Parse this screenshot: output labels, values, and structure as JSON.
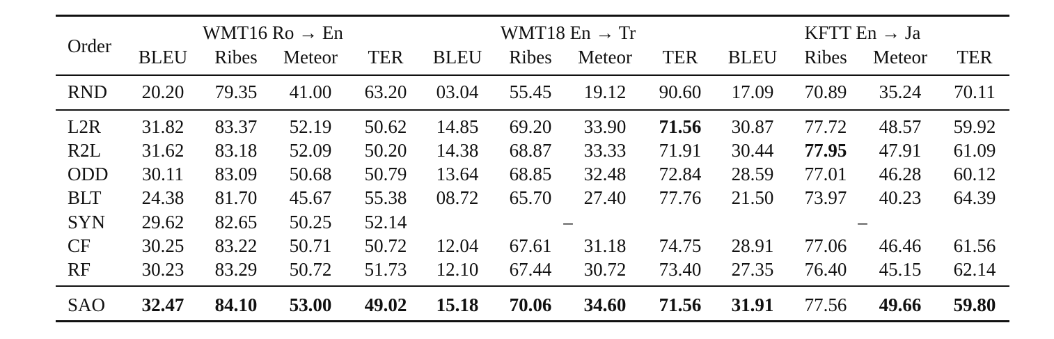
{
  "table": {
    "order_header": "Order",
    "groups": [
      "WMT16 Ro → En",
      "WMT18 En → Tr",
      "KFTT En → Ja"
    ],
    "metrics": [
      "BLEU",
      "Ribes",
      "Meteor",
      "TER"
    ],
    "rows": [
      {
        "label": "RND",
        "cells": [
          {
            "v": "20.20"
          },
          {
            "v": "79.35"
          },
          {
            "v": "41.00"
          },
          {
            "v": "63.20"
          },
          {
            "v": "03.04"
          },
          {
            "v": "55.45"
          },
          {
            "v": "19.12"
          },
          {
            "v": "90.60"
          },
          {
            "v": "17.09"
          },
          {
            "v": "70.89"
          },
          {
            "v": "35.24"
          },
          {
            "v": "70.11"
          }
        ]
      },
      {
        "label": "L2R",
        "cells": [
          {
            "v": "31.82"
          },
          {
            "v": "83.37"
          },
          {
            "v": "52.19"
          },
          {
            "v": "50.62"
          },
          {
            "v": "14.85"
          },
          {
            "v": "69.20"
          },
          {
            "v": "33.90"
          },
          {
            "v": "71.56",
            "b": true
          },
          {
            "v": "30.87"
          },
          {
            "v": "77.72"
          },
          {
            "v": "48.57"
          },
          {
            "v": "59.92"
          }
        ]
      },
      {
        "label": "R2L",
        "cells": [
          {
            "v": "31.62"
          },
          {
            "v": "83.18"
          },
          {
            "v": "52.09"
          },
          {
            "v": "50.20"
          },
          {
            "v": "14.38"
          },
          {
            "v": "68.87"
          },
          {
            "v": "33.33"
          },
          {
            "v": "71.91"
          },
          {
            "v": "30.44"
          },
          {
            "v": "77.95",
            "b": true
          },
          {
            "v": "47.91"
          },
          {
            "v": "61.09"
          }
        ]
      },
      {
        "label": "ODD",
        "cells": [
          {
            "v": "30.11"
          },
          {
            "v": "83.09"
          },
          {
            "v": "50.68"
          },
          {
            "v": "50.79"
          },
          {
            "v": "13.64"
          },
          {
            "v": "68.85"
          },
          {
            "v": "32.48"
          },
          {
            "v": "72.84"
          },
          {
            "v": "28.59"
          },
          {
            "v": "77.01"
          },
          {
            "v": "46.28"
          },
          {
            "v": "60.12"
          }
        ]
      },
      {
        "label": "BLT",
        "cells": [
          {
            "v": "24.38"
          },
          {
            "v": "81.70"
          },
          {
            "v": "45.67"
          },
          {
            "v": "55.38"
          },
          {
            "v": "08.72"
          },
          {
            "v": "65.70"
          },
          {
            "v": "27.40"
          },
          {
            "v": "77.76"
          },
          {
            "v": "21.50"
          },
          {
            "v": "73.97"
          },
          {
            "v": "40.23"
          },
          {
            "v": "64.39"
          }
        ]
      },
      {
        "label": "SYN",
        "cells": [
          {
            "v": "29.62"
          },
          {
            "v": "82.65"
          },
          {
            "v": "50.25"
          },
          {
            "v": "52.14"
          }
        ],
        "dashes": [
          "–",
          "–"
        ]
      },
      {
        "label": "CF",
        "cells": [
          {
            "v": "30.25"
          },
          {
            "v": "83.22"
          },
          {
            "v": "50.71"
          },
          {
            "v": "50.72"
          },
          {
            "v": "12.04"
          },
          {
            "v": "67.61"
          },
          {
            "v": "31.18"
          },
          {
            "v": "74.75"
          },
          {
            "v": "28.91"
          },
          {
            "v": "77.06"
          },
          {
            "v": "46.46"
          },
          {
            "v": "61.56"
          }
        ]
      },
      {
        "label": "RF",
        "cells": [
          {
            "v": "30.23"
          },
          {
            "v": "83.29"
          },
          {
            "v": "50.72"
          },
          {
            "v": "51.73"
          },
          {
            "v": "12.10"
          },
          {
            "v": "67.44"
          },
          {
            "v": "30.72"
          },
          {
            "v": "73.40"
          },
          {
            "v": "27.35"
          },
          {
            "v": "76.40"
          },
          {
            "v": "45.15"
          },
          {
            "v": "62.14"
          }
        ]
      },
      {
        "label": "SAO",
        "label_bold": false,
        "cells": [
          {
            "v": "32.47",
            "b": true
          },
          {
            "v": "84.10",
            "b": true
          },
          {
            "v": "53.00",
            "b": true
          },
          {
            "v": "49.02",
            "b": true
          },
          {
            "v": "15.18",
            "b": true
          },
          {
            "v": "70.06",
            "b": true
          },
          {
            "v": "34.60",
            "b": true
          },
          {
            "v": "71.56",
            "b": true
          },
          {
            "v": "31.91",
            "b": true
          },
          {
            "v": "77.56"
          },
          {
            "v": "49.66",
            "b": true
          },
          {
            "v": "59.80",
            "b": true
          }
        ]
      }
    ]
  }
}
